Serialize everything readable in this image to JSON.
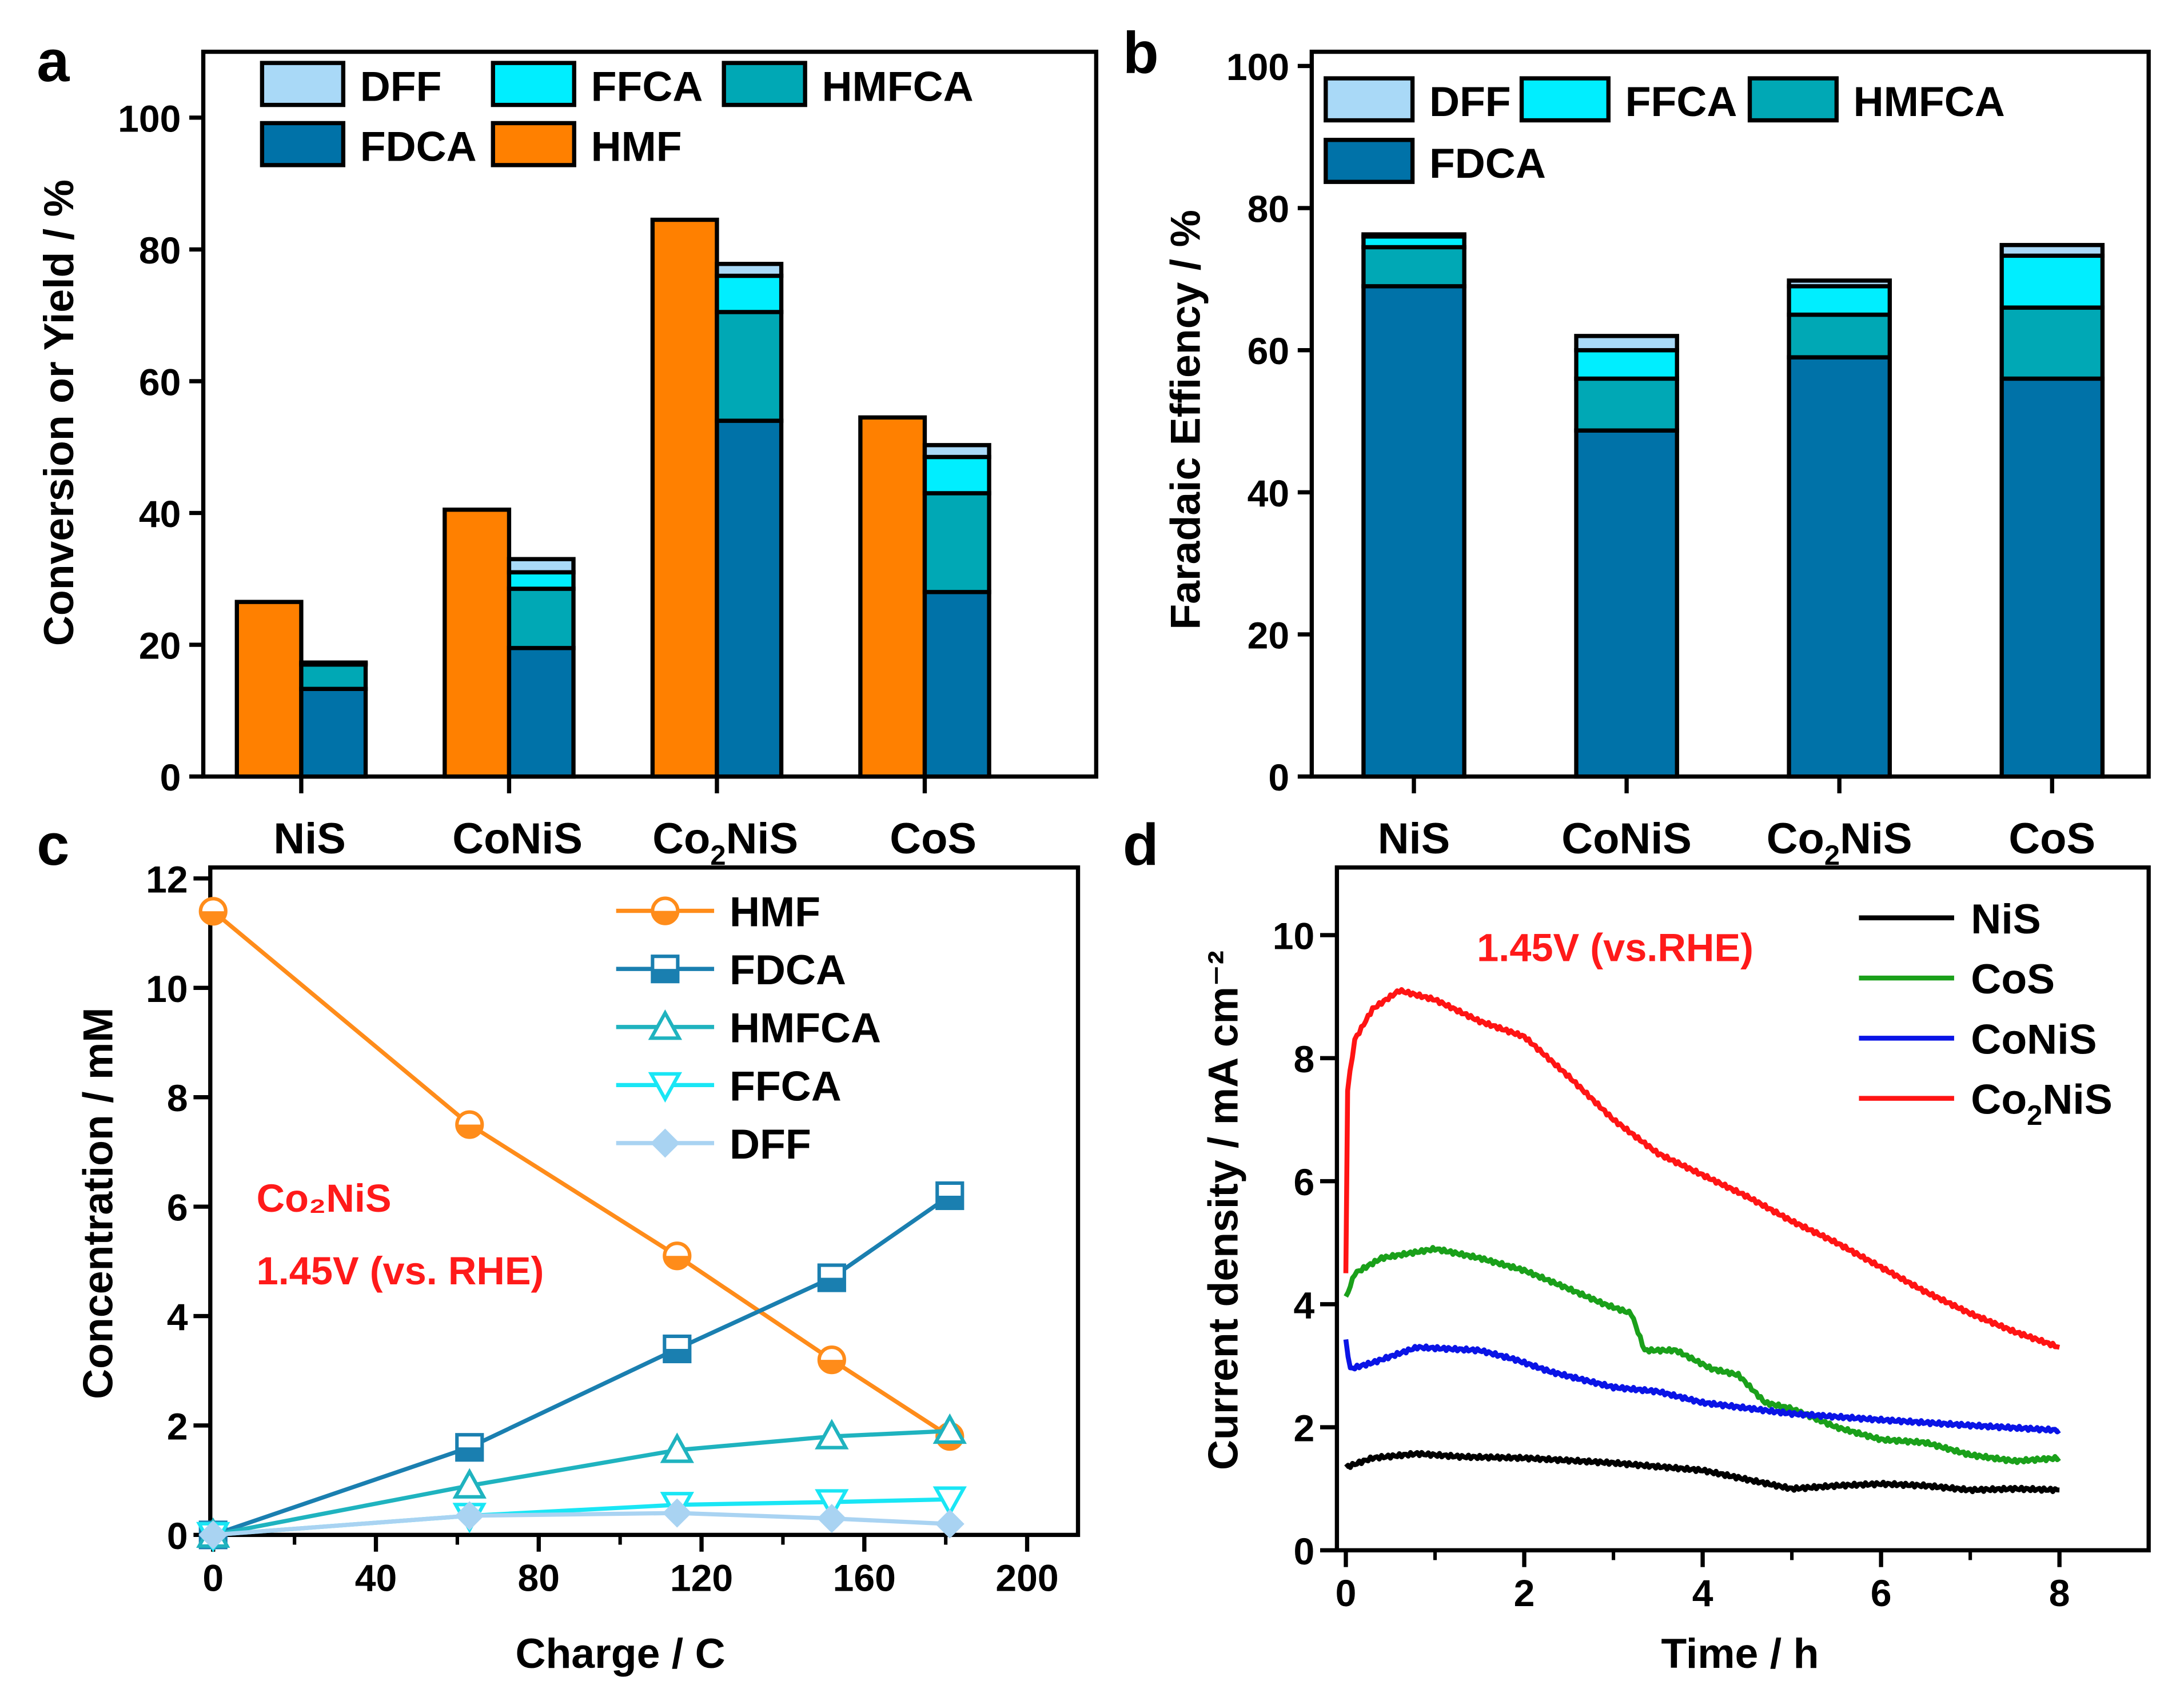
{
  "panels": {
    "a": "a",
    "b": "b",
    "c": "c",
    "d": "d"
  },
  "chart_data": [
    {
      "id": "a",
      "type": "bar",
      "ylabel": "Conversion or Yield / %",
      "xlabel": "",
      "ylim": [
        0,
        110
      ],
      "yticks": [
        0,
        20,
        40,
        60,
        80,
        100
      ],
      "categories": [
        "NiS",
        "CoNiS",
        "Co₂NiS",
        "CoS"
      ],
      "legend": [
        "DFF",
        "FFCA",
        "HMFCA",
        "FDCA",
        "HMF"
      ],
      "colors": {
        "HMF": "#ff8000",
        "FDCA": "#0072a8",
        "HMFCA": "#00a8b5",
        "FFCA": "#00eeff",
        "DFF": "#a9d9f7"
      },
      "conversion": {
        "name": "HMF",
        "values": [
          26.5,
          40.5,
          84.5,
          54.5
        ]
      },
      "stacked_series": [
        {
          "name": "FDCA",
          "values": [
            13.3,
            19.5,
            54.0,
            28.0
          ]
        },
        {
          "name": "HMFCA",
          "values": [
            3.7,
            9.0,
            16.5,
            15.0
          ]
        },
        {
          "name": "FFCA",
          "values": [
            0.2,
            2.5,
            5.5,
            5.5
          ]
        },
        {
          "name": "DFF",
          "values": [
            0.1,
            2.0,
            1.8,
            1.8
          ]
        }
      ]
    },
    {
      "id": "b",
      "type": "bar",
      "ylabel": "Faradaic Effiency / %",
      "xlabel": "",
      "ylim": [
        0,
        102
      ],
      "yticks": [
        0,
        20,
        40,
        60,
        80,
        100
      ],
      "categories": [
        "NiS",
        "CoNiS",
        "Co₂NiS",
        "CoS"
      ],
      "legend": [
        "DFF",
        "FFCA",
        "HMFCA",
        "FDCA"
      ],
      "colors": {
        "FDCA": "#0072a8",
        "HMFCA": "#00a8b5",
        "FFCA": "#00eeff",
        "DFF": "#a9d9f7"
      },
      "stacked_series": [
        {
          "name": "FDCA",
          "values": [
            69.0,
            48.7,
            59.0,
            56.0
          ]
        },
        {
          "name": "HMFCA",
          "values": [
            5.5,
            7.3,
            6.0,
            10.0
          ]
        },
        {
          "name": "FFCA",
          "values": [
            1.5,
            4.0,
            4.0,
            7.3
          ]
        },
        {
          "name": "DFF",
          "values": [
            0.3,
            2.0,
            0.8,
            1.5
          ]
        }
      ]
    },
    {
      "id": "c",
      "type": "line",
      "xlabel": "Charge / C",
      "ylabel": "Concentration / mM",
      "xlim": [
        -0.7,
        212.5
      ],
      "ylim": [
        0,
        12.2
      ],
      "xticks": [
        0,
        40,
        80,
        120,
        160,
        200
      ],
      "yticks": [
        0,
        2,
        4,
        6,
        8,
        10,
        12
      ],
      "annotations": [
        "Co₂NiS",
        "1.45V (vs. RHE)"
      ],
      "x": [
        0,
        63,
        114,
        152,
        181
      ],
      "series": [
        {
          "name": "HMF",
          "color": "#ff8c1a",
          "marker": "circle",
          "values": [
            11.4,
            7.5,
            5.1,
            3.2,
            1.8
          ]
        },
        {
          "name": "FDCA",
          "color": "#1a7fb0",
          "marker": "square",
          "values": [
            0,
            1.6,
            3.4,
            4.7,
            6.2
          ]
        },
        {
          "name": "HMFCA",
          "color": "#1fb3bf",
          "marker": "triangle-up",
          "values": [
            0,
            0.9,
            1.55,
            1.8,
            1.9
          ]
        },
        {
          "name": "FFCA",
          "color": "#19e6f5",
          "marker": "triangle-down",
          "values": [
            0,
            0.35,
            0.55,
            0.6,
            0.65
          ]
        },
        {
          "name": "DFF",
          "color": "#a9d3f2",
          "marker": "diamond",
          "values": [
            0,
            0.35,
            0.4,
            0.3,
            0.2
          ]
        }
      ]
    },
    {
      "id": "d",
      "type": "line",
      "xlabel": "Time / h",
      "ylabel": "Current density / mA cm⁻²",
      "xlim": [
        -0.1,
        9.0
      ],
      "ylim": [
        0,
        11.1
      ],
      "xticks": [
        0,
        2,
        4,
        6,
        8
      ],
      "yticks": [
        0,
        2,
        4,
        6,
        8,
        10
      ],
      "annotations": [
        "1.45V (vs.RHE)"
      ],
      "series": [
        {
          "name": "NiS",
          "color": "#000000",
          "points": [
            [
              0,
              1.35
            ],
            [
              0.3,
              1.5
            ],
            [
              0.8,
              1.57
            ],
            [
              1.3,
              1.52
            ],
            [
              2,
              1.5
            ],
            [
              3,
              1.42
            ],
            [
              4,
              1.3
            ],
            [
              4.5,
              1.15
            ],
            [
              5,
              1.0
            ],
            [
              5.5,
              1.05
            ],
            [
              6,
              1.08
            ],
            [
              6.5,
              1.05
            ],
            [
              7,
              0.98
            ],
            [
              7.5,
              1.0
            ],
            [
              8,
              0.98
            ]
          ]
        },
        {
          "name": "CoS",
          "color": "#1aa01a",
          "points": [
            [
              0,
              4.1
            ],
            [
              0.1,
              4.5
            ],
            [
              0.4,
              4.75
            ],
            [
              1,
              4.9
            ],
            [
              1.5,
              4.75
            ],
            [
              2,
              4.55
            ],
            [
              2.5,
              4.25
            ],
            [
              2.9,
              4.0
            ],
            [
              3.2,
              3.85
            ],
            [
              3.35,
              3.25
            ],
            [
              3.7,
              3.25
            ],
            [
              4.1,
              2.95
            ],
            [
              4.4,
              2.85
            ],
            [
              4.7,
              2.4
            ],
            [
              5,
              2.3
            ],
            [
              5.5,
              2.0
            ],
            [
              6,
              1.8
            ],
            [
              6.5,
              1.75
            ],
            [
              7,
              1.55
            ],
            [
              7.5,
              1.45
            ],
            [
              8,
              1.5
            ]
          ]
        },
        {
          "name": "CoNiS",
          "color": "#0a14e6",
          "points": [
            [
              0,
              3.4
            ],
            [
              0.05,
              2.95
            ],
            [
              0.3,
              3.05
            ],
            [
              0.8,
              3.3
            ],
            [
              1.5,
              3.25
            ],
            [
              1.9,
              3.1
            ],
            [
              2.3,
              2.9
            ],
            [
              3,
              2.65
            ],
            [
              3.5,
              2.58
            ],
            [
              4,
              2.4
            ],
            [
              5,
              2.22
            ],
            [
              6,
              2.12
            ],
            [
              7,
              2.03
            ],
            [
              8,
              1.95
            ]
          ]
        },
        {
          "name": "Co₂NiS",
          "color": "#ff1414",
          "points": [
            [
              0,
              4.5
            ],
            [
              0.02,
              7.5
            ],
            [
              0.1,
              8.3
            ],
            [
              0.3,
              8.8
            ],
            [
              0.6,
              9.1
            ],
            [
              1,
              8.95
            ],
            [
              1.5,
              8.6
            ],
            [
              2,
              8.35
            ],
            [
              2.5,
              7.7
            ],
            [
              3,
              7.0
            ],
            [
              3.5,
              6.45
            ],
            [
              4,
              6.1
            ],
            [
              4.5,
              5.75
            ],
            [
              5,
              5.35
            ],
            [
              5.5,
              5.0
            ],
            [
              6,
              4.6
            ],
            [
              6.5,
              4.2
            ],
            [
              7,
              3.85
            ],
            [
              7.5,
              3.55
            ],
            [
              8,
              3.3
            ]
          ]
        }
      ]
    }
  ]
}
